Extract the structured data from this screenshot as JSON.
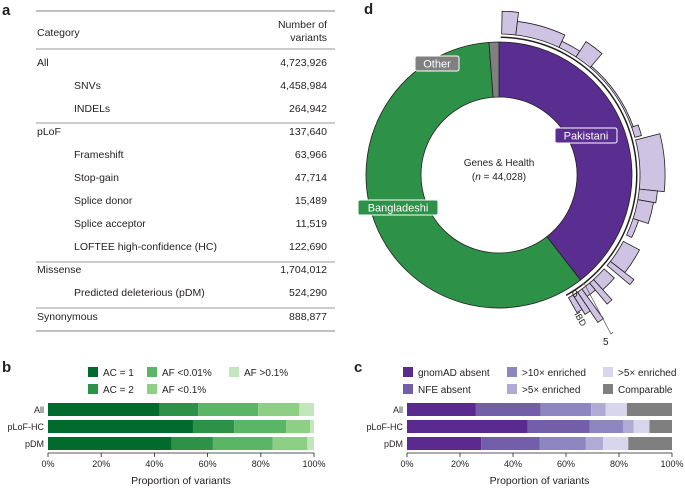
{
  "panels": {
    "a": "a",
    "b": "b",
    "c": "c",
    "d": "d"
  },
  "table": {
    "headers": {
      "category": "Category",
      "count_line1": "Number of",
      "count_line2": "variants"
    },
    "rows": [
      {
        "label": "All",
        "value": "4,723,926",
        "indent": false
      },
      {
        "label": "SNVs",
        "value": "4,458,984",
        "indent": true
      },
      {
        "label": "INDELs",
        "value": "264,942",
        "indent": true
      },
      {
        "label": "pLoF",
        "value": "137,640",
        "indent": false
      },
      {
        "label": "Frameshift",
        "value": "63,966",
        "indent": true
      },
      {
        "label": "Stop-gain",
        "value": "47,714",
        "indent": true
      },
      {
        "label": "Splice donor",
        "value": "15,489",
        "indent": true
      },
      {
        "label": "Splice acceptor",
        "value": "11,519",
        "indent": true
      },
      {
        "label": "LOFTEE high-confidence (HC)",
        "value": "122,690",
        "indent": true
      },
      {
        "label": "Missense",
        "value": "1,704,012",
        "indent": false
      },
      {
        "label": "Predicted deleterious (pDM)",
        "value": "524,290",
        "indent": true
      },
      {
        "label": "Synonymous",
        "value": "888,877",
        "indent": false
      }
    ]
  },
  "chart_data": [
    {
      "panel": "b",
      "type": "bar",
      "orientation": "horizontal",
      "stacked": true,
      "categories": [
        "All",
        "pLoF-HC",
        "pDM"
      ],
      "xlabel": "Proportion of variants",
      "xlim": [
        0,
        100
      ],
      "xticks": [
        "0%",
        "20%",
        "40%",
        "60%",
        "80%",
        "100%"
      ],
      "legend_position": "top",
      "series": [
        {
          "name": "AC = 1",
          "color": "#006b2d",
          "values": [
            42,
            54.5,
            46.5
          ]
        },
        {
          "name": "AC = 2",
          "color": "#2e9148",
          "values": [
            14.5,
            15.5,
            15.5
          ]
        },
        {
          "name": "AF <0.01%",
          "color": "#5bb567",
          "values": [
            22.5,
            19.5,
            22.5
          ]
        },
        {
          "name": "AF <0.1%",
          "color": "#8ecf86",
          "values": [
            15.5,
            9,
            13
          ]
        },
        {
          "name": "AF >0.1%",
          "color": "#c4e6bb",
          "values": [
            5.5,
            1.5,
            2.5
          ]
        }
      ]
    },
    {
      "panel": "c",
      "type": "bar",
      "orientation": "horizontal",
      "stacked": true,
      "categories": [
        "All",
        "pLoF-HC",
        "pDM"
      ],
      "xlabel": "Proportion of variants",
      "xlim": [
        0,
        100
      ],
      "xticks": [
        "0%",
        "20%",
        "40%",
        "60%",
        "80%",
        "100%"
      ],
      "legend_position": "top",
      "series": [
        {
          "name": "gnomAD absent",
          "color": "#5a2a8f",
          "values": [
            26,
            45.5,
            28
          ]
        },
        {
          "name": "NFE absent",
          "color": "#735ea9",
          "values": [
            24.5,
            23.5,
            22
          ]
        },
        {
          "name": ">10× enriched",
          "color": "#8e86c0",
          "values": [
            19,
            12.5,
            17.5
          ]
        },
        {
          "name": ">5× enriched",
          "color": "#afabd5",
          "values": [
            5.5,
            4,
            6.5
          ]
        },
        {
          "name": ">5× enriched",
          "color": "#d7d6ec",
          "values": [
            8,
            6,
            9.5
          ]
        },
        {
          "name": "Comparable",
          "color": "#7f7f7f",
          "values": [
            17,
            8.5,
            16.5
          ]
        }
      ]
    },
    {
      "panel": "d",
      "type": "pie",
      "donut": true,
      "center_label": "Genes & Health",
      "center_n_label": "n",
      "center_n_value": " = 44,028)",
      "center_n_open": "(",
      "slices": [
        {
          "name": "Pakistani",
          "value": 39.5,
          "color": "#5a2d91"
        },
        {
          "name": "Bangladeshi",
          "value": 59.3,
          "color": "#2e9148"
        },
        {
          "name": "Other",
          "value": 1.2,
          "color": "#808080"
        }
      ],
      "ibd_axis": {
        "label": "IBD",
        "min_label": "0",
        "max_label": "5",
        "range": [
          0,
          5
        ]
      },
      "ibd_bar_color": "#cfc3e3",
      "ibd_bars": [
        {
          "from_pct": 0.3,
          "to_pct": 1.9,
          "value": 2.0
        },
        {
          "from_pct": 1.9,
          "to_pct": 7,
          "value": 1.2
        },
        {
          "from_pct": 7,
          "to_pct": 9.2,
          "value": 0.6
        },
        {
          "from_pct": 9.2,
          "to_pct": 11.2,
          "value": 1.6
        },
        {
          "from_pct": 11.2,
          "to_pct": 19.5,
          "value": 0.15
        },
        {
          "from_pct": 19.5,
          "to_pct": 20.7,
          "value": 0.6
        },
        {
          "from_pct": 21,
          "to_pct": 26.6,
          "value": 2.2
        },
        {
          "from_pct": 26.6,
          "to_pct": 27.8,
          "value": 1.6
        },
        {
          "from_pct": 27.8,
          "to_pct": 30,
          "value": 1.4
        },
        {
          "from_pct": 30,
          "to_pct": 32,
          "value": 0.5
        },
        {
          "from_pct": 32.8,
          "to_pct": 35.5,
          "value": 1.6
        },
        {
          "from_pct": 35.5,
          "to_pct": 36.1,
          "value": 2.6
        },
        {
          "from_pct": 36.6,
          "to_pct": 38.3,
          "value": 1.2
        },
        {
          "from_pct": 38.3,
          "to_pct": 38.9,
          "value": 2.4
        },
        {
          "from_pct": 38.9,
          "to_pct": 40,
          "value": 0.8
        },
        {
          "from_pct": 40,
          "to_pct": 40.6,
          "value": 3.2
        },
        {
          "from_pct": 40.6,
          "to_pct": 41.2,
          "value": 2.0
        },
        {
          "from_pct": 41.2,
          "to_pct": 41.8,
          "value": 1.5
        }
      ]
    }
  ]
}
